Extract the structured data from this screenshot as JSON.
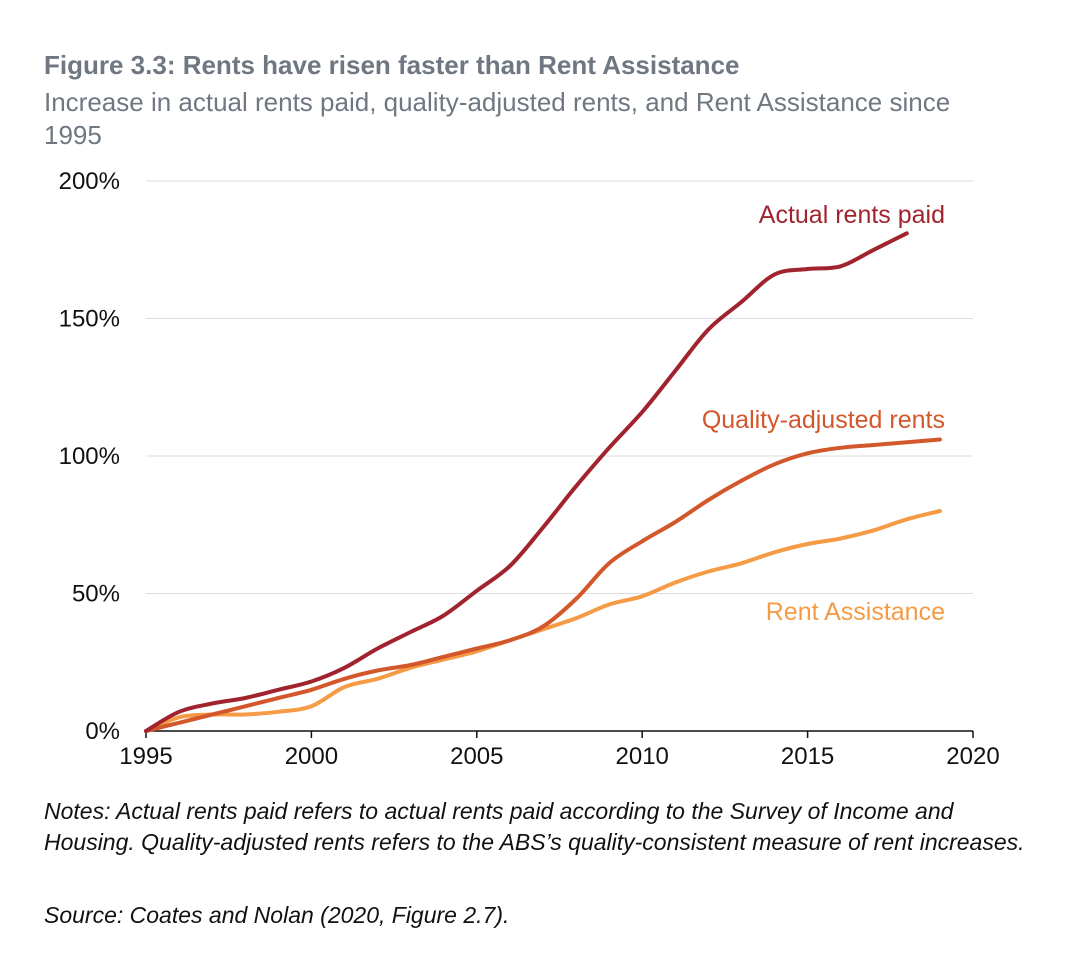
{
  "chart_data": {
    "type": "line",
    "title": "Figure 3.3: Rents have risen faster than Rent Assistance",
    "subtitle": "Increase in actual rents paid, quality-adjusted rents, and Rent Assistance since 1995",
    "xlim": [
      1995,
      2020
    ],
    "ylim": [
      0,
      200
    ],
    "x_ticks": [
      1995,
      2000,
      2005,
      2010,
      2015,
      2020
    ],
    "y_ticks": [
      0,
      50,
      100,
      150,
      200
    ],
    "y_tick_labels": [
      "0%",
      "50%",
      "100%",
      "150%",
      "200%"
    ],
    "grid": "horizontal",
    "legend": "direct labels at line ends",
    "series": [
      {
        "name": "Actual rents paid",
        "color": "#a0232e",
        "x": [
          1995,
          1996,
          1997,
          1998,
          1999,
          2000,
          2001,
          2002,
          2003,
          2004,
          2005,
          2006,
          2007,
          2008,
          2009,
          2010,
          2011,
          2012,
          2013,
          2014,
          2015,
          2016,
          2017,
          2018
        ],
        "y": [
          0,
          7,
          10,
          12,
          15,
          18,
          23,
          30,
          36,
          42,
          51,
          60,
          74,
          89,
          103,
          116,
          131,
          146,
          156,
          166,
          168,
          169,
          175,
          181
        ]
      },
      {
        "name": "Quality-adjusted rents",
        "color": "#d2572a",
        "x": [
          1995,
          1996,
          1997,
          1998,
          1999,
          2000,
          2001,
          2002,
          2003,
          2004,
          2005,
          2006,
          2007,
          2008,
          2009,
          2010,
          2011,
          2012,
          2013,
          2014,
          2015,
          2016,
          2017,
          2018,
          2019
        ],
        "y": [
          0,
          3,
          6,
          9,
          12,
          15,
          19,
          22,
          24,
          27,
          30,
          33,
          38,
          48,
          61,
          69,
          76,
          84,
          91,
          97,
          101,
          103,
          104,
          105,
          106
        ]
      },
      {
        "name": "Rent Assistance",
        "color": "#f59a45",
        "x": [
          1995,
          1996,
          1997,
          1998,
          1999,
          2000,
          2001,
          2002,
          2003,
          2004,
          2005,
          2006,
          2007,
          2008,
          2009,
          2010,
          2011,
          2012,
          2013,
          2014,
          2015,
          2016,
          2017,
          2018,
          2019
        ],
        "y": [
          0,
          5,
          6,
          6,
          7,
          9,
          16,
          19,
          23,
          26,
          29,
          33,
          37,
          41,
          46,
          49,
          54,
          58,
          61,
          65,
          68,
          70,
          73,
          77,
          80
        ]
      }
    ]
  },
  "notes": "Notes: Actual rents paid refers to actual rents paid according to the Survey of Income and Housing. Quality-adjusted rents refers to the ABS’s quality-consistent measure of rent increases.",
  "source": "Source: Coates and Nolan (2020, Figure 2.7)."
}
